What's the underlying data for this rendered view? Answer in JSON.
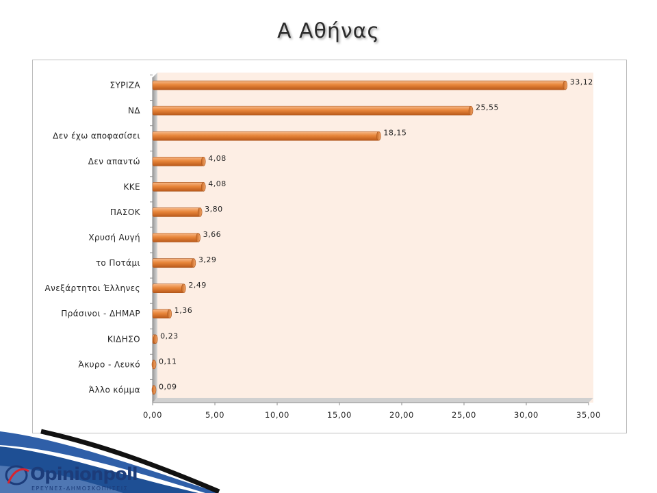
{
  "title": "Α Αθήνας",
  "logo": {
    "name": "Opinionpoll",
    "tagline": "ΕΡΕΥΝΕΣ-ΔΗΜΟΣΚΟΠΗΣΕΙΣ"
  },
  "colors": {
    "bar": "#e8863a",
    "plot_bg": "#fdeee4",
    "title": "#2b2b2b",
    "brand": "#1c3c7a"
  },
  "chart_data": {
    "type": "bar",
    "orientation": "horizontal",
    "categories": [
      "ΣΥΡΙΖΑ",
      "ΝΔ",
      "Δεν έχω αποφασίσει",
      "Δεν απαντώ",
      "ΚΚΕ",
      "ΠΑΣΟΚ",
      "Χρυσή Αυγή",
      "το Ποτάμι",
      "Ανεξάρτητοι Έλληνες",
      "Πράσινοι - ΔΗΜΑΡ",
      "ΚΙΔΗΣΟ",
      "Άκυρο - Λευκό",
      "Άλλο κόμμα"
    ],
    "values": [
      33.12,
      25.55,
      18.15,
      4.08,
      4.08,
      3.8,
      3.66,
      3.29,
      2.49,
      1.36,
      0.23,
      0.11,
      0.09
    ],
    "value_labels": [
      "33,12",
      "25,55",
      "18,15",
      "4,08",
      "4,08",
      "3,80",
      "3,66",
      "3,29",
      "2,49",
      "1,36",
      "0,23",
      "0,11",
      "0,09"
    ],
    "xlim": [
      0,
      35
    ],
    "xticks": [
      "0,00",
      "5,00",
      "10,00",
      "15,00",
      "20,00",
      "25,00",
      "30,00",
      "35,00"
    ],
    "grid": false,
    "legend": "none"
  }
}
